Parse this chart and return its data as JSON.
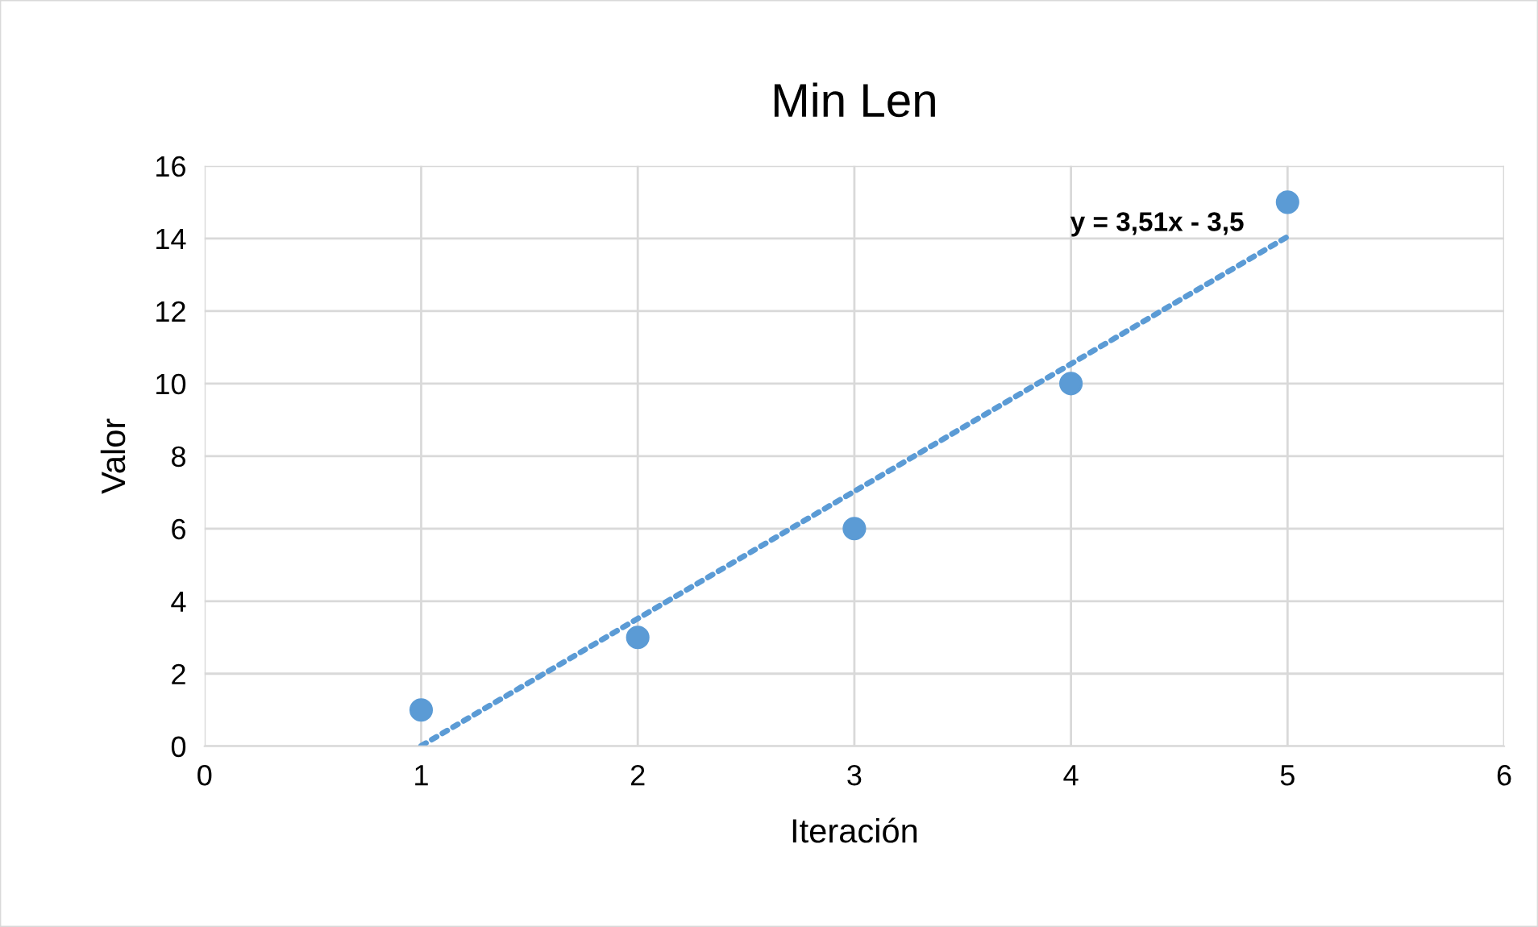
{
  "chart_data": {
    "type": "scatter",
    "title": "Min Len",
    "xlabel": "Iteración",
    "ylabel": "Valor",
    "x": [
      1,
      2,
      3,
      4,
      5
    ],
    "series": [
      {
        "color": "#5b9bd5",
        "marker": "circle",
        "values": [
          1,
          3,
          6,
          10,
          15
        ]
      },
      {
        "type": "line",
        "color": "#5b9bd5",
        "line_style": "dotted",
        "marker": "none",
        "x": [
          1,
          5
        ],
        "values": [
          0.01,
          14.05
        ]
      }
    ],
    "xlim": [
      0,
      6
    ],
    "xticks": [
      0,
      1,
      2,
      3,
      4,
      5,
      6
    ],
    "ylim": [
      0,
      16
    ],
    "yticks": [
      0,
      2,
      4,
      6,
      8,
      10,
      12,
      14,
      16
    ],
    "grid": true,
    "annotations": [
      "y = 3,51x - 3,5"
    ]
  }
}
